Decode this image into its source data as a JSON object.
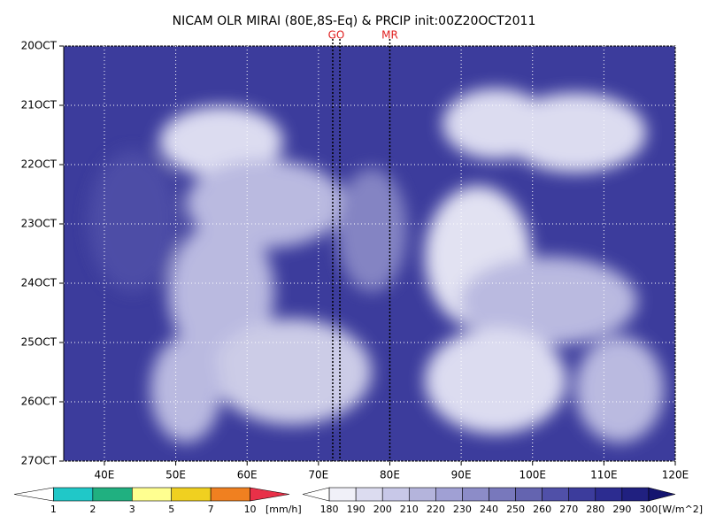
{
  "chart_data": {
    "type": "hovmoller",
    "title": "NICAM OLR MIRAI (80E,8S-Eq) & PRCIP init:00Z20OCT2011",
    "xlim": [
      34.3,
      120
    ],
    "ylim": [
      20,
      27
    ],
    "xticks": [
      {
        "value": 40,
        "label": "40E"
      },
      {
        "value": 50,
        "label": "50E"
      },
      {
        "value": 60,
        "label": "60E"
      },
      {
        "value": 70,
        "label": "70E"
      },
      {
        "value": 80,
        "label": "80E"
      },
      {
        "value": 90,
        "label": "90E"
      },
      {
        "value": 100,
        "label": "100E"
      },
      {
        "value": 110,
        "label": "110E"
      },
      {
        "value": 120,
        "label": "120E"
      }
    ],
    "yticks": [
      {
        "value": 20,
        "label": "20OCT"
      },
      {
        "value": 21,
        "label": "21OCT"
      },
      {
        "value": 22,
        "label": "22OCT"
      },
      {
        "value": 23,
        "label": "23OCT"
      },
      {
        "value": 24,
        "label": "24OCT"
      },
      {
        "value": 25,
        "label": "25OCT"
      },
      {
        "value": 26,
        "label": "26OCT"
      },
      {
        "value": 27,
        "label": "27OCT"
      }
    ],
    "grid": true,
    "lines": [
      {
        "label": "GO",
        "x": [
          72,
          73
        ]
      },
      {
        "label": "MR",
        "x": [
          80
        ]
      }
    ],
    "precip_colorbar": {
      "levels": [
        1,
        2,
        3,
        5,
        7,
        10
      ],
      "unit": "[mm/h]",
      "colors": [
        "#ffffff",
        "#20c8c8",
        "#20b080",
        "#ffff90",
        "#f0d020",
        "#f08020",
        "#e83048"
      ]
    },
    "olr_colorbar": {
      "levels": [
        180,
        190,
        200,
        210,
        220,
        230,
        240,
        250,
        260,
        270,
        280,
        290,
        300
      ],
      "unit": "[W/m^2]",
      "colors": [
        "#ffffff",
        "#f0f0f8",
        "#dcdcf0",
        "#c8c8e8",
        "#b4b4dc",
        "#a0a0d4",
        "#8c8cc8",
        "#7878bc",
        "#6464b0",
        "#5050a8",
        "#3c3c9c",
        "#2c2c90",
        "#202080",
        "#141470"
      ]
    }
  }
}
